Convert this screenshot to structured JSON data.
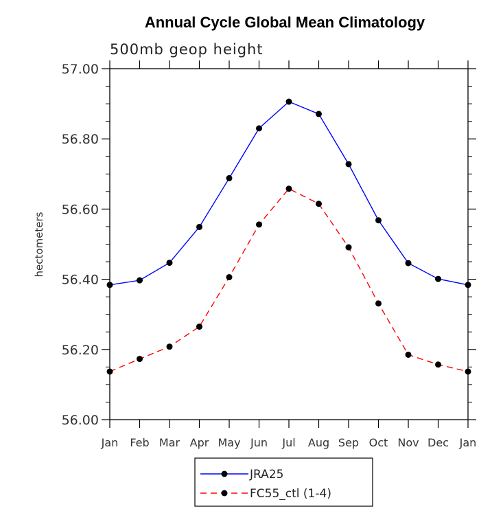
{
  "chart_data": {
    "type": "line",
    "title": "Annual Cycle Global Mean Climatology",
    "subtitle": "500mb geop height",
    "ylabel": "hectometers",
    "xlabel": "",
    "categories": [
      "Jan",
      "Feb",
      "Mar",
      "Apr",
      "May",
      "Jun",
      "Jul",
      "Aug",
      "Sep",
      "Oct",
      "Nov",
      "Dec",
      "Jan"
    ],
    "ylim": [
      56.0,
      57.0
    ],
    "yticks": [
      "56.00",
      "56.20",
      "56.40",
      "56.60",
      "56.80",
      "57.00"
    ],
    "grid": false,
    "legend_position": "bottom-center",
    "series": [
      {
        "name": "JRA25",
        "color": "#0000ff",
        "dash": "solid",
        "values": [
          56.384,
          56.397,
          56.447,
          56.549,
          56.688,
          56.83,
          56.906,
          56.871,
          56.728,
          56.568,
          56.446,
          56.401,
          56.384
        ]
      },
      {
        "name": "FC55_ctl (1-4)",
        "color": "#ff0000",
        "dash": "dashed",
        "values": [
          56.137,
          56.173,
          56.208,
          56.265,
          56.406,
          56.556,
          56.658,
          56.615,
          56.491,
          56.331,
          56.185,
          56.157,
          56.137
        ]
      }
    ]
  }
}
